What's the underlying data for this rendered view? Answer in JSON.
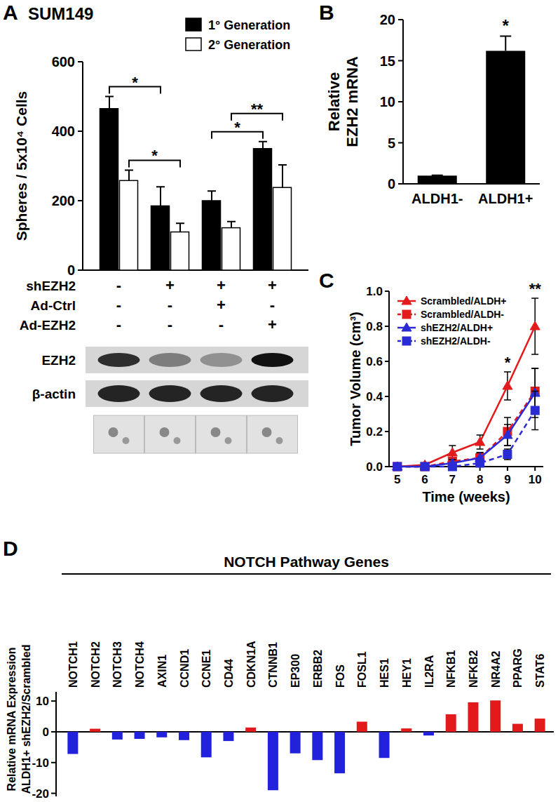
{
  "chart_data": [
    {
      "type": "bar",
      "panel": "A",
      "title": "SUM149",
      "ylabel": "Spheres / 5x10⁴ Cells",
      "categories": [
        null,
        null,
        null,
        null
      ],
      "series": [
        {
          "name": "1° Generation",
          "color": "#000000",
          "values": [
            465,
            185,
            200,
            350
          ],
          "errors": [
            35,
            55,
            28,
            20
          ]
        },
        {
          "name": "2° Generation",
          "color": "#ffffff",
          "values": [
            258,
            110,
            122,
            238
          ],
          "errors": [
            30,
            25,
            18,
            65
          ]
        }
      ],
      "ylim": [
        0,
        600
      ],
      "yticks": [
        0,
        200,
        400,
        600
      ],
      "legend": "top-right",
      "annotations": [
        {
          "text": "*",
          "series": 1,
          "categories": [
            0,
            1
          ]
        },
        {
          "text": "*",
          "series": 0,
          "categories": [
            0,
            1
          ]
        },
        {
          "text": "*",
          "series": 0,
          "categories": [
            2,
            3
          ]
        },
        {
          "text": "**",
          "series": 1,
          "categories": [
            2,
            3
          ]
        }
      ],
      "conditions": [
        {
          "label": "shEZH2",
          "values": [
            "-",
            "+",
            "+",
            "+"
          ]
        },
        {
          "label": "Ad-Ctrl",
          "values": [
            "-",
            "-",
            "+",
            "-"
          ]
        },
        {
          "label": "Ad-EZH2",
          "values": [
            "-",
            "-",
            "-",
            "+"
          ]
        }
      ],
      "blots": [
        {
          "label": "EZH2",
          "intensity": [
            0.85,
            0.45,
            0.35,
            1
          ]
        },
        {
          "label": "β-actin",
          "intensity": [
            0.9,
            0.9,
            0.9,
            0.9
          ]
        }
      ]
    },
    {
      "type": "bar",
      "panel": "B",
      "ylabel": [
        "Relative",
        "EZH2 mRNA"
      ],
      "categories": [
        "ALDH1-",
        "ALDH1+"
      ],
      "values": [
        1,
        16.2
      ],
      "errors": [
        0.05,
        1.8
      ],
      "color": "#000000",
      "ylim": [
        0,
        20
      ],
      "yticks": [
        0,
        5,
        10,
        15,
        20
      ],
      "annotations": [
        {
          "text": "*",
          "category": 1
        }
      ]
    },
    {
      "type": "line",
      "panel": "C",
      "xlabel": "Time (weeks)",
      "ylabel": "Tumor Volume (cm³)",
      "x": [
        5,
        6,
        7,
        8,
        9,
        10
      ],
      "series": [
        {
          "name": "Scrambled/ALDH+",
          "color": "#e31a1c",
          "marker": "triangle",
          "line_style": "solid",
          "values": [
            0,
            0.01,
            0.08,
            0.14,
            0.46,
            0.8
          ],
          "errors": [
            0,
            0.005,
            0.04,
            0.04,
            0.08,
            0.16
          ]
        },
        {
          "name": "Scrambled/ALDH-",
          "color": "#e31a1c",
          "marker": "square",
          "line_style": "dashed",
          "values": [
            0,
            0,
            0.03,
            0.05,
            0.2,
            0.43
          ],
          "errors": [
            0,
            0,
            0.02,
            0.03,
            0.08,
            0.13
          ]
        },
        {
          "name": "shEZH2/ALDH+",
          "color": "#2b2bd6",
          "marker": "triangle",
          "line_style": "solid",
          "values": [
            0,
            0,
            0.02,
            0.05,
            0.18,
            0.42
          ],
          "errors": [
            0,
            0,
            0.02,
            0.03,
            0.06,
            0.14
          ]
        },
        {
          "name": "shEZH2/ALDH-",
          "color": "#2b2bd6",
          "marker": "square",
          "line_style": "dashed",
          "values": [
            0,
            0,
            0,
            0.02,
            0.07,
            0.32
          ],
          "errors": [
            0,
            0,
            0,
            0.02,
            0.03,
            0.11
          ]
        }
      ],
      "xlim": [
        4.7,
        10.3
      ],
      "xticks": [
        5,
        6,
        7,
        8,
        9,
        10
      ],
      "ylim": [
        0,
        1
      ],
      "yticks": [
        {
          "value": 0,
          "label": "0.0"
        },
        0.2,
        0.4,
        0.6,
        0.8,
        {
          "value": 1,
          "label": "1.0"
        }
      ],
      "legend": "top-left",
      "annotations": [
        {
          "text": "*",
          "x": 9
        },
        {
          "text": "**",
          "x": 10
        }
      ]
    },
    {
      "type": "bar",
      "panel": "D",
      "title": "NOTCH Pathway Genes",
      "ylabel": [
        "Relative mRNA Expression",
        "ALDH1+ shEZH2/Scrambled"
      ],
      "categories": [
        "NOTCH1",
        "NOTCH2",
        "NOTCH3",
        "NOTCH4",
        "AXIN1",
        "CCND1",
        "CCNE1",
        "CD44",
        "CDKN1A",
        "CTNNB1",
        "EP300",
        "ERBB2",
        "FOS",
        "FOSL1",
        "HES1",
        "HEY1",
        "IL2RA",
        "NFKB1",
        "NFKB2",
        "NR4A2",
        "PPARG",
        "STAT6"
      ],
      "values": [
        -7.2,
        1.0,
        -2.5,
        -2.3,
        -1.8,
        -2.7,
        -8.3,
        -3.0,
        1.4,
        -19,
        -7,
        -9.2,
        -13.5,
        3.3,
        -8.5,
        1.1,
        -1.2,
        5.7,
        9.6,
        10.2,
        2.6,
        4.3
      ],
      "colors": [
        "#2222dd",
        "#e31a1c",
        "#2222dd",
        "#2222dd",
        "#2222dd",
        "#2222dd",
        "#2222dd",
        "#2222dd",
        "#e31a1c",
        "#2222dd",
        "#2222dd",
        "#2222dd",
        "#2222dd",
        "#e31a1c",
        "#2222dd",
        "#e31a1c",
        "#2222dd",
        "#e31a1c",
        "#e31a1c",
        "#e31a1c",
        "#e31a1c",
        "#e31a1c"
      ],
      "ylim": [
        -21,
        13
      ],
      "yticks": [
        -20,
        -10,
        0,
        10
      ]
    }
  ]
}
